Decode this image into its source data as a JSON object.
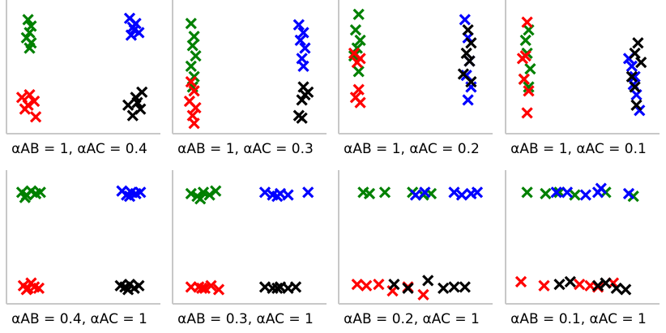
{
  "chart_data": [
    {
      "type": "scatter",
      "xlabel": "αAB = 1, αAC = 0.4",
      "xlim": [
        0,
        1
      ],
      "ylim": [
        0,
        1
      ],
      "series": [
        {
          "color": "#008000",
          "x": [
            0.14,
            0.16,
            0.15,
            0.13,
            0.16,
            0.15
          ],
          "y": [
            0.88,
            0.83,
            0.78,
            0.74,
            0.7,
            0.66
          ]
        },
        {
          "color": "#0000ff",
          "x": [
            0.8,
            0.84,
            0.82,
            0.86,
            0.81,
            0.83
          ],
          "y": [
            0.89,
            0.85,
            0.82,
            0.78,
            0.76,
            0.8
          ]
        },
        {
          "color": "#ff0000",
          "x": [
            0.1,
            0.15,
            0.18,
            0.12,
            0.19,
            0.14
          ],
          "y": [
            0.28,
            0.3,
            0.25,
            0.19,
            0.13,
            0.22
          ]
        },
        {
          "color": "#000000",
          "x": [
            0.79,
            0.84,
            0.87,
            0.82,
            0.85,
            0.88
          ],
          "y": [
            0.22,
            0.28,
            0.19,
            0.14,
            0.24,
            0.32
          ]
        }
      ]
    },
    {
      "type": "scatter",
      "xlabel": "αAB = 1, αAC = 0.3",
      "xlim": [
        0,
        1
      ],
      "ylim": [
        0,
        1
      ],
      "series": [
        {
          "color": "#008000",
          "x": [
            0.12,
            0.14,
            0.13,
            0.15,
            0.12,
            0.14,
            0.13
          ],
          "y": [
            0.85,
            0.75,
            0.68,
            0.6,
            0.52,
            0.44,
            0.36
          ]
        },
        {
          "color": "#0000ff",
          "x": [
            0.82,
            0.85,
            0.83,
            0.86,
            0.84,
            0.85
          ],
          "y": [
            0.84,
            0.78,
            0.72,
            0.66,
            0.58,
            0.52
          ]
        },
        {
          "color": "#ff0000",
          "x": [
            0.12,
            0.14,
            0.11,
            0.15,
            0.13,
            0.14
          ],
          "y": [
            0.4,
            0.33,
            0.25,
            0.2,
            0.14,
            0.08
          ]
        },
        {
          "color": "#000000",
          "x": [
            0.85,
            0.88,
            0.84,
            0.86,
            0.82,
            0.84
          ],
          "y": [
            0.36,
            0.32,
            0.26,
            0.3,
            0.14,
            0.12
          ]
        }
      ]
    },
    {
      "type": "scatter",
      "xlabel": "αAB = 1, αAC = 0.2",
      "xlim": [
        0,
        1
      ],
      "ylim": [
        0,
        1
      ],
      "series": [
        {
          "color": "#008000",
          "x": [
            0.13,
            0.11,
            0.14,
            0.12,
            0.1,
            0.13
          ],
          "y": [
            0.92,
            0.8,
            0.72,
            0.66,
            0.6,
            0.48
          ]
        },
        {
          "color": "#ff0000",
          "x": [
            0.1,
            0.14,
            0.12,
            0.13,
            0.11,
            0.14
          ],
          "y": [
            0.62,
            0.58,
            0.55,
            0.34,
            0.28,
            0.24
          ]
        },
        {
          "color": "#0000ff",
          "x": [
            0.82,
            0.84,
            0.85,
            0.83,
            0.86,
            0.84
          ],
          "y": [
            0.88,
            0.74,
            0.56,
            0.45,
            0.36,
            0.26
          ]
        },
        {
          "color": "#000000",
          "x": [
            0.84,
            0.86,
            0.83,
            0.85,
            0.81,
            0.86
          ],
          "y": [
            0.8,
            0.7,
            0.62,
            0.56,
            0.46,
            0.4
          ]
        }
      ]
    },
    {
      "type": "scatter",
      "xlabel": "αAB = 1, αAC = 0.1",
      "xlim": [
        0,
        1
      ],
      "ylim": [
        0,
        1
      ],
      "series": [
        {
          "color": "#008000",
          "x": [
            0.15,
            0.13,
            0.14,
            0.16,
            0.12,
            0.15
          ],
          "y": [
            0.8,
            0.72,
            0.62,
            0.5,
            0.42,
            0.36
          ]
        },
        {
          "color": "#ff0000",
          "x": [
            0.14,
            0.11,
            0.13,
            0.12,
            0.15,
            0.14
          ],
          "y": [
            0.86,
            0.58,
            0.6,
            0.42,
            0.33,
            0.16
          ]
        },
        {
          "color": "#0000ff",
          "x": [
            0.8,
            0.82,
            0.84,
            0.83,
            0.85,
            0.87
          ],
          "y": [
            0.58,
            0.52,
            0.44,
            0.38,
            0.3,
            0.18
          ]
        },
        {
          "color": "#000000",
          "x": [
            0.86,
            0.84,
            0.88,
            0.82,
            0.84,
            0.85
          ],
          "y": [
            0.7,
            0.62,
            0.55,
            0.44,
            0.36,
            0.22
          ]
        }
      ]
    },
    {
      "type": "scatter",
      "xlabel": "αAB = 0.4, αAC = 1",
      "xlim": [
        0,
        1
      ],
      "ylim": [
        0,
        1
      ],
      "series": [
        {
          "color": "#008000",
          "x": [
            0.1,
            0.13,
            0.16,
            0.19,
            0.22,
            0.12
          ],
          "y": [
            0.86,
            0.84,
            0.87,
            0.85,
            0.86,
            0.82
          ]
        },
        {
          "color": "#0000ff",
          "x": [
            0.75,
            0.78,
            0.81,
            0.84,
            0.87,
            0.8
          ],
          "y": [
            0.87,
            0.84,
            0.86,
            0.85,
            0.86,
            0.83
          ]
        },
        {
          "color": "#ff0000",
          "x": [
            0.11,
            0.14,
            0.16,
            0.18,
            0.21,
            0.13
          ],
          "y": [
            0.14,
            0.12,
            0.16,
            0.13,
            0.12,
            0.11
          ]
        },
        {
          "color": "#000000",
          "x": [
            0.74,
            0.77,
            0.8,
            0.83,
            0.86,
            0.79
          ],
          "y": [
            0.14,
            0.13,
            0.15,
            0.12,
            0.14,
            0.11
          ]
        }
      ]
    },
    {
      "type": "scatter",
      "xlabel": "αAB = 0.3, αAC = 1",
      "xlim": [
        0,
        1
      ],
      "ylim": [
        0,
        1
      ],
      "series": [
        {
          "color": "#008000",
          "x": [
            0.12,
            0.16,
            0.2,
            0.24,
            0.28,
            0.18
          ],
          "y": [
            0.85,
            0.83,
            0.86,
            0.84,
            0.87,
            0.81
          ]
        },
        {
          "color": "#0000ff",
          "x": [
            0.6,
            0.65,
            0.7,
            0.75,
            0.88,
            0.68
          ],
          "y": [
            0.86,
            0.84,
            0.85,
            0.84,
            0.86,
            0.83
          ]
        },
        {
          "color": "#ff0000",
          "x": [
            0.12,
            0.17,
            0.21,
            0.25,
            0.3,
            0.19
          ],
          "y": [
            0.13,
            0.13,
            0.12,
            0.14,
            0.11,
            0.12
          ]
        },
        {
          "color": "#000000",
          "x": [
            0.6,
            0.65,
            0.7,
            0.75,
            0.8,
            0.68
          ],
          "y": [
            0.13,
            0.12,
            0.13,
            0.12,
            0.13,
            0.12
          ]
        }
      ]
    },
    {
      "type": "scatter",
      "xlabel": "αAB = 0.2, αAC = 1",
      "xlim": [
        0,
        1
      ],
      "ylim": [
        0,
        1
      ],
      "series": [
        {
          "color": "#008000",
          "x": [
            0.16,
            0.2,
            0.3,
            0.48,
            0.55,
            0.6
          ],
          "y": [
            0.86,
            0.85,
            0.86,
            0.86,
            0.84,
            0.85
          ]
        },
        {
          "color": "#0000ff",
          "x": [
            0.5,
            0.56,
            0.75,
            0.8,
            0.86,
            0.9
          ],
          "y": [
            0.84,
            0.86,
            0.86,
            0.84,
            0.85,
            0.86
          ]
        },
        {
          "color": "#ff0000",
          "x": [
            0.12,
            0.18,
            0.26,
            0.35,
            0.45,
            0.55
          ],
          "y": [
            0.15,
            0.14,
            0.15,
            0.1,
            0.13,
            0.07
          ]
        },
        {
          "color": "#000000",
          "x": [
            0.36,
            0.45,
            0.58,
            0.68,
            0.75,
            0.82
          ],
          "y": [
            0.15,
            0.12,
            0.18,
            0.12,
            0.13,
            0.13
          ]
        }
      ]
    },
    {
      "type": "scatter",
      "xlabel": "αAB = 0.1, αAC = 1",
      "xlim": [
        0,
        1
      ],
      "ylim": [
        0,
        1
      ],
      "series": [
        {
          "color": "#008000",
          "x": [
            0.14,
            0.26,
            0.35,
            0.45,
            0.65,
            0.83
          ],
          "y": [
            0.86,
            0.85,
            0.86,
            0.84,
            0.86,
            0.83
          ]
        },
        {
          "color": "#0000ff",
          "x": [
            0.33,
            0.4,
            0.52,
            0.6,
            0.62,
            0.8
          ],
          "y": [
            0.86,
            0.86,
            0.84,
            0.86,
            0.89,
            0.85
          ]
        },
        {
          "color": "#ff0000",
          "x": [
            0.1,
            0.25,
            0.48,
            0.55,
            0.6,
            0.7
          ],
          "y": [
            0.17,
            0.14,
            0.15,
            0.14,
            0.13,
            0.16
          ]
        },
        {
          "color": "#000000",
          "x": [
            0.35,
            0.42,
            0.6,
            0.65,
            0.72,
            0.78
          ],
          "y": [
            0.15,
            0.17,
            0.14,
            0.16,
            0.12,
            0.11
          ]
        }
      ]
    }
  ]
}
